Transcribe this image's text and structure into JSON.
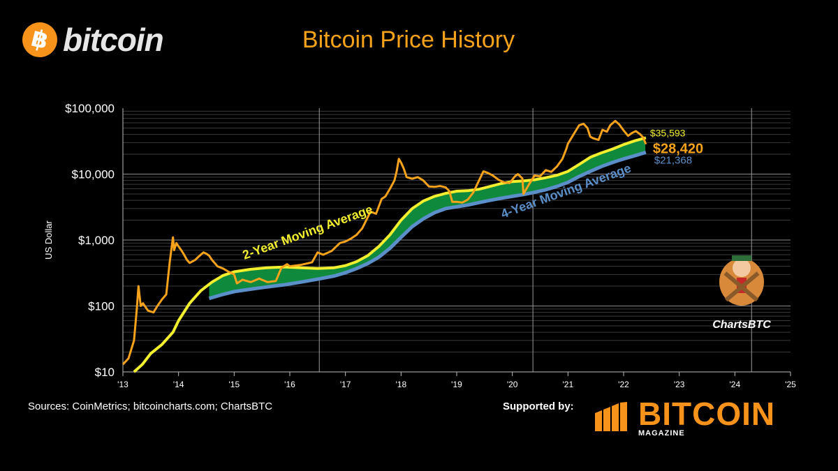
{
  "header": {
    "logo_text": "bitcoin",
    "logo_symbol": "฿",
    "title": "Bitcoin Price History"
  },
  "footer": {
    "sources": "Sources: CoinMetrics; bitcoincharts.com; ChartsBTC",
    "supported_by": "Supported by:",
    "sponsor_name": "BITCOIN",
    "sponsor_sub": "MAGAZINE"
  },
  "mascot": {
    "label": "ChartsBTC"
  },
  "colors": {
    "background": "#000000",
    "price": "#f7a21b",
    "ma2": "#f2ef2e",
    "ma4": "#5b8fc9",
    "band": "#0f8a3c",
    "title": "#f7a21b"
  },
  "chart_data": {
    "type": "line",
    "title": "Bitcoin Price History",
    "ylabel": "US Dollar",
    "yscale": "log",
    "ylim": [
      10,
      100000
    ],
    "xlim": [
      2013,
      2025
    ],
    "x_ticks": [
      "'13",
      "'14",
      "'15",
      "'16",
      "'17",
      "'18",
      "'19",
      "'20",
      "'21",
      "'22",
      "'23",
      "'24",
      "'25"
    ],
    "y_ticks": [
      "$10",
      "$100",
      "$1,000",
      "$10,000",
      "$100,000"
    ],
    "halving_lines": [
      2016.53,
      2020.37,
      2024.3
    ],
    "series": [
      {
        "name": "Price",
        "x": [
          2013.0,
          2013.1,
          2013.2,
          2013.25,
          2013.28,
          2013.32,
          2013.36,
          2013.45,
          2013.55,
          2013.62,
          2013.7,
          2013.78,
          2013.84,
          2013.9,
          2013.92,
          2013.96,
          2014.0,
          2014.05,
          2014.1,
          2014.15,
          2014.2,
          2014.3,
          2014.4,
          2014.45,
          2014.5,
          2014.55,
          2014.6,
          2014.7,
          2014.8,
          2014.9,
          2015.0,
          2015.05,
          2015.15,
          2015.3,
          2015.45,
          2015.6,
          2015.75,
          2015.85,
          2015.95,
          2016.0,
          2016.2,
          2016.4,
          2016.5,
          2016.6,
          2016.75,
          2016.9,
          2017.0,
          2017.1,
          2017.2,
          2017.3,
          2017.4,
          2017.45,
          2017.55,
          2017.65,
          2017.72,
          2017.8,
          2017.88,
          2017.92,
          2017.96,
          2018.0,
          2018.05,
          2018.1,
          2018.2,
          2018.3,
          2018.4,
          2018.5,
          2018.6,
          2018.7,
          2018.8,
          2018.87,
          2018.92,
          2019.0,
          2019.1,
          2019.2,
          2019.3,
          2019.4,
          2019.48,
          2019.55,
          2019.65,
          2019.75,
          2019.85,
          2019.95,
          2020.05,
          2020.1,
          2020.18,
          2020.2,
          2020.3,
          2020.4,
          2020.5,
          2020.6,
          2020.7,
          2020.8,
          2020.9,
          2020.97,
          2021.0,
          2021.05,
          2021.1,
          2021.2,
          2021.28,
          2021.35,
          2021.4,
          2021.45,
          2021.55,
          2021.62,
          2021.7,
          2021.76,
          2021.85,
          2021.92,
          2022.0,
          2022.08,
          2022.15,
          2022.22,
          2022.3,
          2022.35,
          2022.4
        ],
        "values": [
          13,
          16,
          30,
          90,
          200,
          100,
          110,
          85,
          80,
          100,
          125,
          150,
          450,
          1100,
          700,
          900,
          800,
          700,
          600,
          500,
          450,
          500,
          600,
          650,
          620,
          580,
          500,
          400,
          370,
          330,
          300,
          220,
          250,
          230,
          260,
          230,
          240,
          380,
          430,
          400,
          420,
          460,
          650,
          600,
          680,
          900,
          950,
          1050,
          1200,
          1500,
          2200,
          2700,
          2500,
          4200,
          4600,
          6000,
          8000,
          11000,
          17000,
          15000,
          12000,
          9000,
          8500,
          9000,
          8000,
          6500,
          6400,
          6600,
          6300,
          5500,
          3800,
          3800,
          3700,
          4100,
          5300,
          8000,
          11000,
          10500,
          9500,
          8200,
          7500,
          7300,
          9300,
          10000,
          8600,
          5000,
          7000,
          9500,
          9300,
          11500,
          10800,
          13000,
          17000,
          24000,
          29000,
          34000,
          40000,
          55000,
          58000,
          50000,
          37000,
          35000,
          33000,
          47000,
          44000,
          55000,
          64000,
          57000,
          46000,
          38000,
          42000,
          45000,
          40000,
          36000,
          28420
        ]
      },
      {
        "name": "2-Year Moving Average",
        "x": [
          2013.2,
          2013.35,
          2013.5,
          2013.7,
          2013.9,
          2014.0,
          2014.2,
          2014.4,
          2014.6,
          2014.8,
          2015.0,
          2015.3,
          2015.6,
          2015.9,
          2016.2,
          2016.5,
          2016.8,
          2017.0,
          2017.2,
          2017.4,
          2017.6,
          2017.8,
          2018.0,
          2018.2,
          2018.4,
          2018.6,
          2018.8,
          2019.0,
          2019.2,
          2019.4,
          2019.6,
          2019.8,
          2020.0,
          2020.2,
          2020.4,
          2020.6,
          2020.8,
          2021.0,
          2021.2,
          2021.4,
          2021.6,
          2021.8,
          2022.0,
          2022.2,
          2022.4
        ],
        "values": [
          10,
          13,
          19,
          26,
          40,
          60,
          110,
          170,
          230,
          290,
          330,
          360,
          380,
          390,
          380,
          370,
          380,
          410,
          470,
          580,
          800,
          1200,
          2000,
          3000,
          3900,
          4600,
          5100,
          5500,
          5600,
          5900,
          6500,
          7200,
          7700,
          7900,
          8200,
          8800,
          9600,
          11000,
          14000,
          18000,
          21000,
          24000,
          28000,
          32000,
          35593
        ]
      },
      {
        "name": "4-Year Moving Average",
        "x": [
          2014.55,
          2014.8,
          2015.0,
          2015.3,
          2015.6,
          2015.9,
          2016.2,
          2016.5,
          2016.8,
          2017.0,
          2017.2,
          2017.4,
          2017.6,
          2017.8,
          2018.0,
          2018.2,
          2018.4,
          2018.6,
          2018.8,
          2019.0,
          2019.2,
          2019.4,
          2019.6,
          2019.8,
          2020.0,
          2020.2,
          2020.4,
          2020.6,
          2020.8,
          2021.0,
          2021.2,
          2021.4,
          2021.6,
          2021.8,
          2022.0,
          2022.2,
          2022.4
        ],
        "values": [
          130,
          150,
          165,
          180,
          195,
          210,
          230,
          255,
          285,
          320,
          370,
          440,
          550,
          750,
          1100,
          1600,
          2100,
          2600,
          3000,
          3200,
          3400,
          3700,
          4000,
          4300,
          4600,
          4900,
          5300,
          5800,
          6500,
          7500,
          9200,
          11000,
          13000,
          15000,
          17000,
          19000,
          21368
        ]
      }
    ],
    "annotations": {
      "ma2_label": "2-Year Moving Average",
      "ma4_label": "4-Year Moving Average",
      "ma2_value": "$35,593",
      "price_value": "$28,420",
      "ma4_value": "$21,368"
    }
  }
}
